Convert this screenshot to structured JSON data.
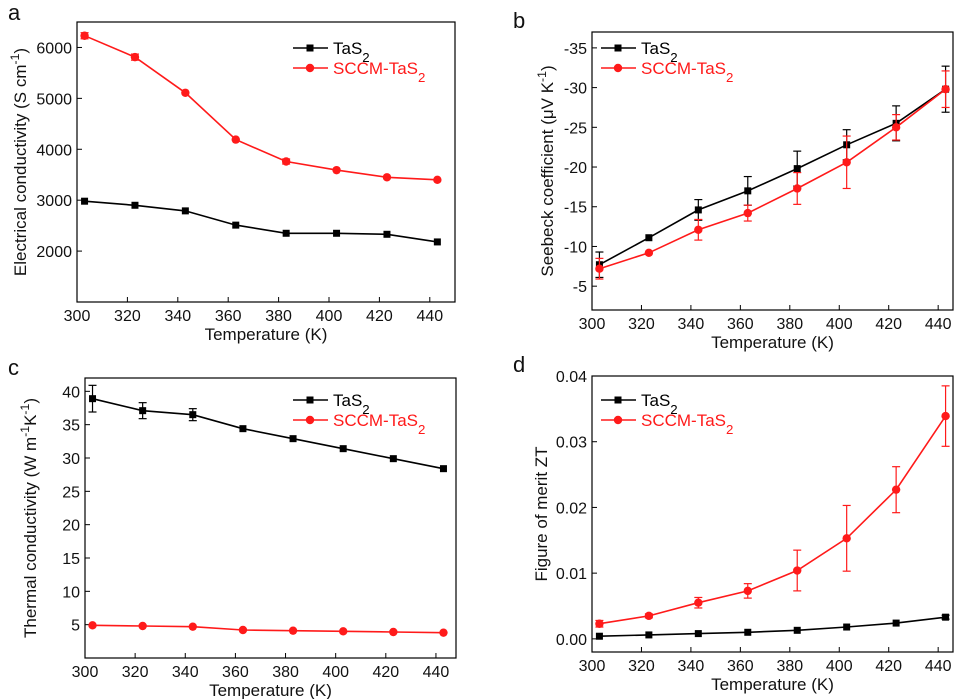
{
  "chart_data": [
    {
      "type": "line",
      "panel_label": "a",
      "xlabel": "Temperature (K)",
      "ylabel": "Electrical conductivity (S cm⁻¹)",
      "xlim": [
        300,
        450
      ],
      "ylim": [
        1000,
        6500
      ],
      "xticks": [
        300,
        320,
        340,
        360,
        380,
        400,
        420,
        440
      ],
      "yticks": [
        2000,
        3000,
        4000,
        5000,
        6000
      ],
      "legend_position": "top-right",
      "series": [
        {
          "name": "TaS₂",
          "color": "#000000",
          "marker": "square",
          "x": [
            303,
            323,
            343,
            363,
            383,
            403,
            423,
            443
          ],
          "y": [
            2980,
            2900,
            2790,
            2510,
            2350,
            2350,
            2330,
            2180
          ],
          "err": [
            0,
            0,
            0,
            0,
            0,
            0,
            0,
            0
          ]
        },
        {
          "name": "SCCM-TaS₂",
          "color": "#ff1a1a",
          "marker": "circle",
          "x": [
            303,
            323,
            343,
            363,
            383,
            403,
            423,
            443
          ],
          "y": [
            6230,
            5810,
            5110,
            4190,
            3760,
            3590,
            3450,
            3400
          ],
          "err": [
            60,
            60,
            0,
            0,
            50,
            0,
            0,
            0
          ]
        }
      ]
    },
    {
      "type": "line",
      "panel_label": "b",
      "xlabel": "Temperature (K)",
      "ylabel": "Seebeck coefficient (μV K⁻¹)",
      "xlim": [
        300,
        446
      ],
      "ylim": [
        -2,
        -37
      ],
      "xticks": [
        300,
        320,
        340,
        360,
        380,
        400,
        420,
        440
      ],
      "yticks": [
        -5,
        -10,
        -15,
        -20,
        -25,
        -30,
        -35
      ],
      "legend_position": "top-left",
      "series": [
        {
          "name": "TaS₂",
          "color": "#000000",
          "marker": "square",
          "x": [
            303,
            323,
            343,
            363,
            383,
            403,
            423,
            443
          ],
          "y": [
            -7.7,
            -11.1,
            -14.6,
            -17.0,
            -19.8,
            -22.8,
            -25.5,
            -29.8
          ],
          "err": [
            1.6,
            0,
            1.3,
            1.8,
            2.2,
            1.9,
            2.2,
            2.9
          ]
        },
        {
          "name": "SCCM-TaS₂",
          "color": "#ff1a1a",
          "marker": "circle",
          "x": [
            303,
            323,
            343,
            363,
            383,
            403,
            423,
            443
          ],
          "y": [
            -7.2,
            -9.2,
            -12.1,
            -14.2,
            -17.3,
            -20.6,
            -25.0,
            -29.8
          ],
          "err": [
            1.3,
            0,
            1.3,
            1.0,
            2.0,
            3.3,
            1.6,
            2.3
          ]
        }
      ]
    },
    {
      "type": "line",
      "panel_label": "c",
      "xlabel": "Temperature (K)",
      "ylabel": "Thermal conductivity (W m⁻¹K⁻¹)",
      "xlim": [
        300,
        448
      ],
      "ylim": [
        0,
        42
      ],
      "xticks": [
        300,
        320,
        340,
        360,
        380,
        400,
        420,
        440
      ],
      "yticks": [
        5,
        10,
        15,
        20,
        25,
        30,
        35,
        40
      ],
      "legend_position": "top-right",
      "series": [
        {
          "name": "TaS₂",
          "color": "#000000",
          "marker": "square",
          "x": [
            303,
            323,
            343,
            363,
            383,
            403,
            423,
            443
          ],
          "y": [
            38.9,
            37.1,
            36.5,
            34.4,
            32.9,
            31.4,
            29.9,
            28.4
          ],
          "err": [
            2.0,
            1.2,
            0.9,
            0,
            0,
            0,
            0,
            0
          ]
        },
        {
          "name": "SCCM-TaS₂",
          "color": "#ff1a1a",
          "marker": "circle",
          "x": [
            303,
            323,
            343,
            363,
            383,
            403,
            423,
            443
          ],
          "y": [
            4.9,
            4.8,
            4.7,
            4.2,
            4.1,
            4.0,
            3.9,
            3.8
          ],
          "err": [
            0,
            0,
            0,
            0,
            0,
            0,
            0,
            0
          ]
        }
      ]
    },
    {
      "type": "line",
      "panel_label": "d",
      "xlabel": "Temperature (K)",
      "ylabel": "Figure of merit ZT",
      "xlim": [
        300,
        446
      ],
      "ylim": [
        -0.002,
        0.04
      ],
      "xticks": [
        300,
        320,
        340,
        360,
        380,
        400,
        420,
        440
      ],
      "yticks": [
        0.0,
        0.01,
        0.02,
        0.03,
        0.04
      ],
      "ytick_labels": [
        "0.00",
        "0.01",
        "0.02",
        "0.03",
        "0.04"
      ],
      "legend_position": "top-left",
      "series": [
        {
          "name": "TaS₂",
          "color": "#000000",
          "marker": "square",
          "x": [
            303,
            323,
            343,
            363,
            383,
            403,
            423,
            443
          ],
          "y": [
            0.0004,
            0.0006,
            0.0008,
            0.001,
            0.0013,
            0.0018,
            0.0024,
            0.0033
          ],
          "err": [
            0,
            0,
            0,
            0,
            0,
            0,
            0,
            0.0003
          ]
        },
        {
          "name": "SCCM-TaS₂",
          "color": "#ff1a1a",
          "marker": "circle",
          "x": [
            303,
            323,
            343,
            363,
            383,
            403,
            423,
            443
          ],
          "y": [
            0.0023,
            0.0035,
            0.0055,
            0.0073,
            0.0104,
            0.0153,
            0.0227,
            0.0339
          ],
          "err": [
            0.0005,
            0.0003,
            0.0008,
            0.0011,
            0.0031,
            0.005,
            0.0035,
            0.0046
          ]
        }
      ]
    }
  ]
}
